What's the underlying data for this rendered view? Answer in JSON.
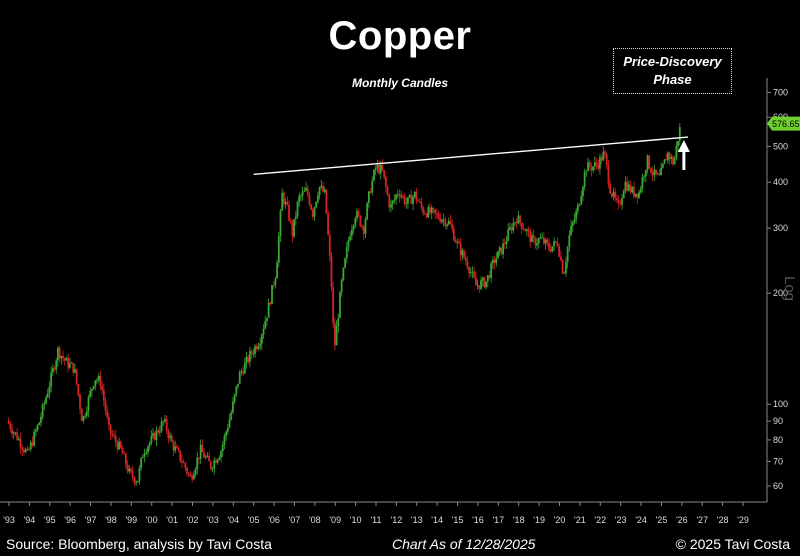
{
  "chart_data": {
    "type": "candlestick",
    "title": "Copper",
    "subtitle": "Monthly Candles",
    "annotation": [
      "Price-Discovery",
      "Phase"
    ],
    "y_scale": "log",
    "y_scale_label": "Log",
    "ylim": [
      55,
      720
    ],
    "y_ticks": [
      60,
      70,
      80,
      90,
      100,
      200,
      300,
      400,
      500,
      600,
      700
    ],
    "x_tick_labels": [
      "'93",
      "'94",
      "'95",
      "'96",
      "'97",
      "'98",
      "'99",
      "'00",
      "'01",
      "'02",
      "'03",
      "'04",
      "'05",
      "'06",
      "'07",
      "'08",
      "'09",
      "'10",
      "'11",
      "'12",
      "'13",
      "'14",
      "'15",
      "'16",
      "'17",
      "'18",
      "'19",
      "'20",
      "'21",
      "'22",
      "'23",
      "'24",
      "'25",
      "'26",
      "'27",
      "'28",
      "'29"
    ],
    "last_price_label": "576.65",
    "last_price": 576.65,
    "up_color": "#3aa832",
    "down_color": "#d42424",
    "trendline": {
      "start": [
        2005.0,
        420
      ],
      "end": [
        2026.3,
        530
      ],
      "color": "#ffffff"
    },
    "arrow": {
      "x": 2026.1,
      "direction": "up",
      "color": "#ffffff"
    },
    "price_path_points": [
      [
        1992.9,
        90
      ],
      [
        1993.5,
        80
      ],
      [
        1993.9,
        73
      ],
      [
        1994.5,
        90
      ],
      [
        1995.1,
        120
      ],
      [
        1995.4,
        140
      ],
      [
        1995.8,
        130
      ],
      [
        1996.2,
        125
      ],
      [
        1996.6,
        90
      ],
      [
        1997.2,
        118
      ],
      [
        1997.5,
        115
      ],
      [
        1997.9,
        85
      ],
      [
        1998.5,
        75
      ],
      [
        1998.9,
        65
      ],
      [
        1999.3,
        62
      ],
      [
        1999.6,
        75
      ],
      [
        2000.0,
        80
      ],
      [
        2000.6,
        90
      ],
      [
        2001.0,
        78
      ],
      [
        2001.5,
        70
      ],
      [
        2001.9,
        63
      ],
      [
        2002.4,
        75
      ],
      [
        2002.9,
        68
      ],
      [
        2003.4,
        75
      ],
      [
        2003.9,
        95
      ],
      [
        2004.3,
        120
      ],
      [
        2004.8,
        135
      ],
      [
        2005.3,
        150
      ],
      [
        2005.7,
        180
      ],
      [
        2006.1,
        230
      ],
      [
        2006.4,
        370
      ],
      [
        2006.7,
        330
      ],
      [
        2006.9,
        290
      ],
      [
        2007.2,
        360
      ],
      [
        2007.6,
        380
      ],
      [
        2007.9,
        330
      ],
      [
        2008.2,
        390
      ],
      [
        2008.5,
        370
      ],
      [
        2008.8,
        220
      ],
      [
        2008.95,
        140
      ],
      [
        2009.3,
        210
      ],
      [
        2009.7,
        290
      ],
      [
        2010.0,
        330
      ],
      [
        2010.4,
        300
      ],
      [
        2010.7,
        380
      ],
      [
        2011.0,
        440
      ],
      [
        2011.3,
        430
      ],
      [
        2011.7,
        340
      ],
      [
        2012.1,
        380
      ],
      [
        2012.5,
        350
      ],
      [
        2012.9,
        370
      ],
      [
        2013.3,
        335
      ],
      [
        2013.7,
        330
      ],
      [
        2014.2,
        320
      ],
      [
        2014.6,
        310
      ],
      [
        2015.0,
        270
      ],
      [
        2015.5,
        240
      ],
      [
        2015.9,
        210
      ],
      [
        2016.4,
        215
      ],
      [
        2016.8,
        245
      ],
      [
        2017.2,
        265
      ],
      [
        2017.6,
        300
      ],
      [
        2017.9,
        320
      ],
      [
        2018.3,
        300
      ],
      [
        2018.7,
        275
      ],
      [
        2019.1,
        280
      ],
      [
        2019.5,
        265
      ],
      [
        2019.9,
        275
      ],
      [
        2020.2,
        225
      ],
      [
        2020.5,
        290
      ],
      [
        2020.9,
        340
      ],
      [
        2021.3,
        440
      ],
      [
        2021.6,
        440
      ],
      [
        2021.9,
        450
      ],
      [
        2022.2,
        480
      ],
      [
        2022.5,
        380
      ],
      [
        2022.9,
        340
      ],
      [
        2023.2,
        400
      ],
      [
        2023.6,
        375
      ],
      [
        2023.9,
        375
      ],
      [
        2024.3,
        460
      ],
      [
        2024.6,
        420
      ],
      [
        2024.9,
        410
      ],
      [
        2025.3,
        480
      ],
      [
        2025.6,
        450
      ],
      [
        2025.8,
        520
      ],
      [
        2025.95,
        576.65
      ]
    ]
  },
  "footer": {
    "source": "Source: Bloomberg, analysis by Tavi Costa",
    "date": "Chart As of 12/28/2025",
    "copyright": "© 2025 Tavi Costa"
  }
}
